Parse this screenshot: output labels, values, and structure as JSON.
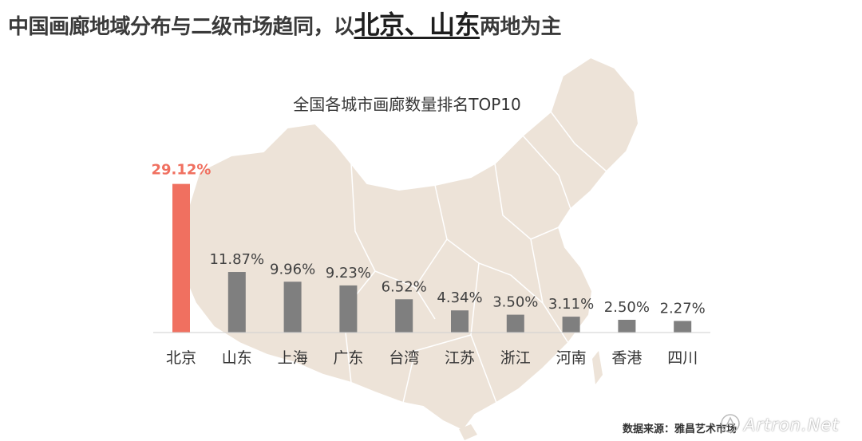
{
  "headline": {
    "prefix": "中国画廊地域分布与二级市场趋同，以",
    "highlight": "北京、山东",
    "suffix": "两地为主"
  },
  "source_note": "数据来源：雅昌艺术市场",
  "watermark_text": "Artron.Net",
  "colors": {
    "highlight_bar": "#f07060",
    "bar": "#7f7f7f",
    "map": "#ede3d8",
    "map_border": "#ffffff",
    "highlight_label": "#f07060",
    "label": "#404040"
  },
  "chart_data": {
    "type": "bar",
    "title": "全国各城市画廊数量排名TOP10",
    "categories": [
      "北京",
      "山东",
      "上海",
      "广东",
      "台湾",
      "江苏",
      "浙江",
      "河南",
      "香港",
      "四川"
    ],
    "values": [
      29.12,
      11.87,
      9.96,
      9.23,
      6.52,
      4.34,
      3.5,
      3.11,
      2.5,
      2.27
    ],
    "value_labels": [
      "29.12%",
      "11.87%",
      "9.96%",
      "9.23%",
      "6.52%",
      "4.34%",
      "3.50%",
      "3.11%",
      "2.50%",
      "2.27%"
    ],
    "highlight_index": 0,
    "ylim": [
      0,
      30
    ],
    "grid": false,
    "legend": "none",
    "xlabel": "",
    "ylabel": ""
  }
}
